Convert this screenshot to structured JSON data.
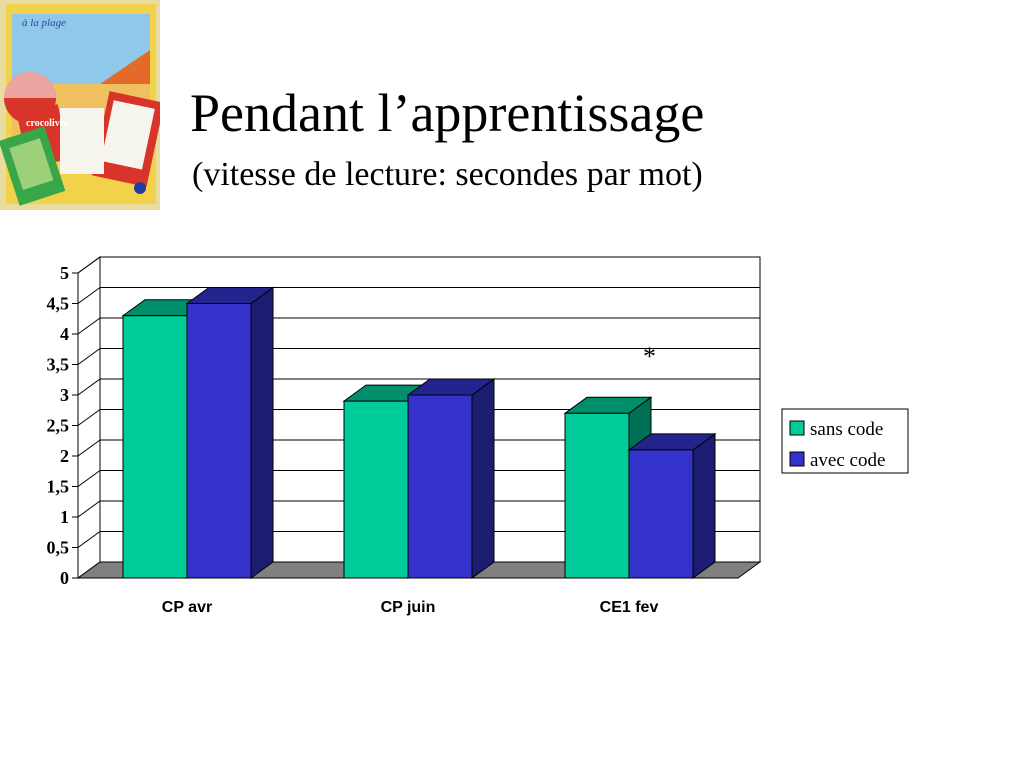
{
  "slide": {
    "title": "Pendant l’apprentissage",
    "subtitle": "(vitesse de lecture: secondes par mot)",
    "photo_label": "à la plage",
    "book_title": "crocolivre"
  },
  "chart_data": {
    "type": "bar",
    "categories": [
      "CP avr",
      "CP juin",
      "CE1 fev"
    ],
    "series": [
      {
        "name": "sans code",
        "values": [
          4.3,
          2.9,
          2.7
        ],
        "color": "#00CC99"
      },
      {
        "name": "avec code",
        "values": [
          4.5,
          3.0,
          2.1
        ],
        "color": "#3333CC"
      }
    ],
    "ylim": [
      0,
      5
    ],
    "yticks": [
      "0",
      "0,5",
      "1",
      "1,5",
      "2",
      "2,5",
      "3",
      "3,5",
      "4",
      "4,5",
      "5"
    ],
    "grid": true,
    "legend": "right",
    "annotation": "*"
  }
}
